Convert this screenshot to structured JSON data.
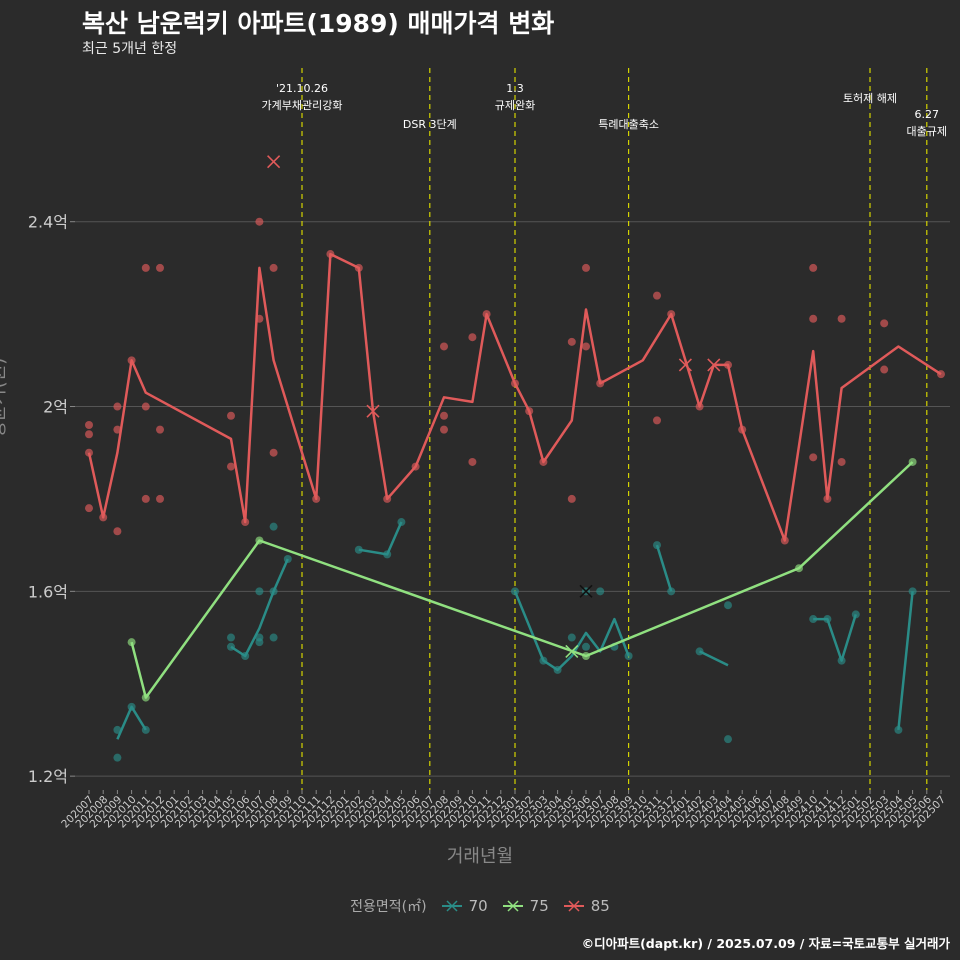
{
  "title": "복산 남운럭키 아파트(1989) 매매가격 변화",
  "subtitle": "최근 5개년 한정",
  "caption": "©디아파트(dapt.kr) / 2025.07.09 / 자료=국토교통부 실거래가",
  "colors": {
    "background": "#2b2b2b",
    "grid": "#555555",
    "vline": "#d4d400",
    "s70": "#2a8c87",
    "s75": "#90e080",
    "s85": "#e05a5a"
  },
  "chart_data": {
    "type": "line",
    "title": "복산 남운럭키 아파트(1989) 매매가격 변화",
    "subtitle": "최근 5개년 한정",
    "xlabel": "거래년월",
    "ylabel": "평균가(원)",
    "grid": true,
    "legend_position": "bottom",
    "legend_title": "전용면적(㎡)",
    "y_ticks": [
      {
        "v": 1.2,
        "label": "1.2억"
      },
      {
        "v": 1.6,
        "label": "1.6억"
      },
      {
        "v": 2.0,
        "label": "2억"
      },
      {
        "v": 2.4,
        "label": "2.4억"
      }
    ],
    "ylim": [
      1.17,
      2.75
    ],
    "x_categories": [
      "202007",
      "202008",
      "202009",
      "202010",
      "202011",
      "202012",
      "202101",
      "202102",
      "202103",
      "202104",
      "202105",
      "202106",
      "202107",
      "202108",
      "202109",
      "202110",
      "202111",
      "202112",
      "202201",
      "202202",
      "202203",
      "202204",
      "202205",
      "202206",
      "202207",
      "202208",
      "202209",
      "202210",
      "202211",
      "202212",
      "202301",
      "202302",
      "202303",
      "202304",
      "202305",
      "202306",
      "202307",
      "202308",
      "202309",
      "202310",
      "202311",
      "202312",
      "202401",
      "202402",
      "202403",
      "202404",
      "202405",
      "202406",
      "202407",
      "202408",
      "202409",
      "202410",
      "202411",
      "202412",
      "202501",
      "202502",
      "202503",
      "202504",
      "202505",
      "202506",
      "202507"
    ],
    "events": [
      {
        "x": "202110",
        "lines": [
          "'21.10.26",
          "가계부채관리강화"
        ],
        "level": 1
      },
      {
        "x": "202207",
        "lines": [
          "DSR 3단계"
        ],
        "level": 2
      },
      {
        "x": "202301",
        "lines": [
          "1.3",
          "규제완화"
        ],
        "level": 1
      },
      {
        "x": "202309",
        "lines": [
          "특례대출축소"
        ],
        "level": 2
      },
      {
        "x": "202502",
        "lines": [
          "토허제 해제"
        ],
        "level": 1
      },
      {
        "x": "202506",
        "lines": [
          "6.27",
          "대출규제"
        ],
        "level": 3
      }
    ],
    "series": [
      {
        "name": "70",
        "color": "#2a8c87",
        "segments": [
          [
            [
              "202009",
              1.28
            ],
            [
              "202010",
              1.35
            ],
            [
              "202011",
              1.3
            ]
          ],
          [
            [
              "202105",
              1.48
            ],
            [
              "202106",
              1.46
            ],
            [
              "202107",
              1.52
            ],
            [
              "202108",
              1.6
            ],
            [
              "202109",
              1.67
            ]
          ],
          [
            [
              "202202",
              1.69
            ],
            [
              "202204",
              1.68
            ],
            [
              "202205",
              1.75
            ]
          ],
          [
            [
              "202301",
              1.6
            ],
            [
              "202303",
              1.45
            ],
            [
              "202304",
              1.43
            ],
            [
              "202305",
              1.46
            ],
            [
              "202306",
              1.51
            ],
            [
              "202307",
              1.47
            ],
            [
              "202308",
              1.54
            ],
            [
              "202309",
              1.46
            ]
          ],
          [
            [
              "202311",
              1.7
            ],
            [
              "202312",
              1.6
            ]
          ],
          [
            [
              "202402",
              1.47
            ],
            [
              "202404",
              1.44
            ]
          ],
          [
            [
              "202410",
              1.54
            ],
            [
              "202411",
              1.54
            ],
            [
              "202412",
              1.45
            ],
            [
              "202501",
              1.55
            ]
          ],
          [
            [
              "202504",
              1.3
            ],
            [
              "202505",
              1.6
            ]
          ]
        ],
        "points": [
          [
            "202009",
            1.3
          ],
          [
            "202009",
            1.24
          ],
          [
            "202010",
            1.35
          ],
          [
            "202011",
            1.3
          ],
          [
            "202105",
            1.5
          ],
          [
            "202105",
            1.48
          ],
          [
            "202106",
            1.46
          ],
          [
            "202107",
            1.6
          ],
          [
            "202107",
            1.5
          ],
          [
            "202107",
            1.49
          ],
          [
            "202108",
            1.74
          ],
          [
            "202108",
            1.6
          ],
          [
            "202108",
            1.5
          ],
          [
            "202109",
            1.67
          ],
          [
            "202202",
            1.69
          ],
          [
            "202204",
            1.68
          ],
          [
            "202205",
            1.75
          ],
          [
            "202301",
            1.6
          ],
          [
            "202303",
            1.45
          ],
          [
            "202304",
            1.43
          ],
          [
            "202305",
            1.5
          ],
          [
            "202306",
            1.48
          ],
          [
            "202306",
            1.6
          ],
          [
            "202307",
            1.6
          ],
          [
            "202308",
            1.48
          ],
          [
            "202309",
            1.46
          ],
          [
            "202311",
            1.7
          ],
          [
            "202312",
            1.6
          ],
          [
            "202402",
            1.47
          ],
          [
            "202404",
            1.57
          ],
          [
            "202404",
            1.28
          ],
          [
            "202410",
            1.54
          ],
          [
            "202411",
            1.54
          ],
          [
            "202412",
            1.45
          ],
          [
            "202501",
            1.55
          ],
          [
            "202504",
            1.3
          ],
          [
            "202505",
            1.6
          ]
        ],
        "crosses": [
          [
            "202306",
            1.6
          ]
        ]
      },
      {
        "name": "75",
        "color": "#90e080",
        "segments": [
          [
            [
              "202010",
              1.49
            ],
            [
              "202011",
              1.37
            ],
            [
              "202107",
              1.71
            ],
            [
              "202306",
              1.46
            ],
            [
              "202409",
              1.65
            ],
            [
              "202505",
              1.88
            ]
          ]
        ],
        "points": [
          [
            "202010",
            1.49
          ],
          [
            "202011",
            1.37
          ],
          [
            "202107",
            1.71
          ],
          [
            "202306",
            1.46
          ],
          [
            "202409",
            1.65
          ],
          [
            "202505",
            1.88
          ]
        ],
        "crosses": [
          [
            "202305",
            1.47
          ]
        ]
      },
      {
        "name": "85",
        "color": "#e05a5a",
        "segments": [
          [
            [
              "202007",
              1.9
            ],
            [
              "202008",
              1.76
            ],
            [
              "202009",
              1.9
            ],
            [
              "202010",
              2.1
            ],
            [
              "202011",
              2.03
            ],
            [
              "202105",
              1.93
            ],
            [
              "202106",
              1.75
            ],
            [
              "202107",
              2.3
            ],
            [
              "202108",
              2.1
            ],
            [
              "202111",
              1.8
            ],
            [
              "202112",
              2.33
            ],
            [
              "202202",
              2.3
            ],
            [
              "202203",
              1.99
            ],
            [
              "202204",
              1.8
            ],
            [
              "202206",
              1.87
            ],
            [
              "202208",
              2.02
            ],
            [
              "202210",
              2.01
            ],
            [
              "202211",
              2.2
            ],
            [
              "202301",
              2.05
            ],
            [
              "202302",
              1.99
            ],
            [
              "202303",
              1.88
            ],
            [
              "202305",
              1.97
            ],
            [
              "202306",
              2.21
            ],
            [
              "202307",
              2.05
            ],
            [
              "202310",
              2.1
            ],
            [
              "202312",
              2.2
            ],
            [
              "202402",
              2.0
            ],
            [
              "202403",
              2.09
            ],
            [
              "202404",
              2.09
            ],
            [
              "202405",
              1.95
            ],
            [
              "202408",
              1.71
            ],
            [
              "202410",
              2.12
            ],
            [
              "202411",
              1.8
            ],
            [
              "202412",
              2.04
            ],
            [
              "202504",
              2.13
            ],
            [
              "202507",
              2.07
            ]
          ]
        ],
        "points": [
          [
            "202007",
            1.96
          ],
          [
            "202007",
            1.94
          ],
          [
            "202007",
            1.9
          ],
          [
            "202007",
            1.78
          ],
          [
            "202008",
            1.76
          ],
          [
            "202009",
            2.0
          ],
          [
            "202009",
            1.95
          ],
          [
            "202009",
            1.73
          ],
          [
            "202010",
            2.1
          ],
          [
            "202011",
            2.3
          ],
          [
            "202011",
            2.0
          ],
          [
            "202011",
            1.8
          ],
          [
            "202012",
            2.3
          ],
          [
            "202012",
            1.95
          ],
          [
            "202012",
            1.8
          ],
          [
            "202105",
            1.98
          ],
          [
            "202105",
            1.87
          ],
          [
            "202106",
            1.75
          ],
          [
            "202107",
            2.4
          ],
          [
            "202107",
            2.19
          ],
          [
            "202108",
            2.3
          ],
          [
            "202108",
            1.9
          ],
          [
            "202111",
            1.8
          ],
          [
            "202112",
            2.33
          ],
          [
            "202202",
            2.3
          ],
          [
            "202204",
            1.8
          ],
          [
            "202206",
            1.87
          ],
          [
            "202208",
            2.13
          ],
          [
            "202208",
            1.98
          ],
          [
            "202208",
            1.95
          ],
          [
            "202210",
            2.15
          ],
          [
            "202210",
            1.88
          ],
          [
            "202211",
            2.2
          ],
          [
            "202301",
            2.05
          ],
          [
            "202302",
            1.99
          ],
          [
            "202303",
            1.88
          ],
          [
            "202305",
            2.14
          ],
          [
            "202305",
            1.8
          ],
          [
            "202306",
            2.3
          ],
          [
            "202306",
            2.13
          ],
          [
            "202307",
            2.05
          ],
          [
            "202311",
            2.24
          ],
          [
            "202311",
            1.97
          ],
          [
            "202312",
            2.2
          ],
          [
            "202402",
            2.0
          ],
          [
            "202404",
            2.09
          ],
          [
            "202405",
            1.95
          ],
          [
            "202408",
            1.71
          ],
          [
            "202410",
            2.3
          ],
          [
            "202410",
            2.19
          ],
          [
            "202410",
            1.89
          ],
          [
            "202411",
            1.8
          ],
          [
            "202412",
            2.19
          ],
          [
            "202412",
            1.88
          ],
          [
            "202503",
            2.18
          ],
          [
            "202503",
            2.08
          ],
          [
            "202507",
            2.07
          ]
        ],
        "crosses": [
          [
            "202108",
            2.53
          ],
          [
            "202203",
            1.99
          ],
          [
            "202401",
            2.09
          ],
          [
            "202403",
            2.09
          ]
        ]
      }
    ]
  }
}
